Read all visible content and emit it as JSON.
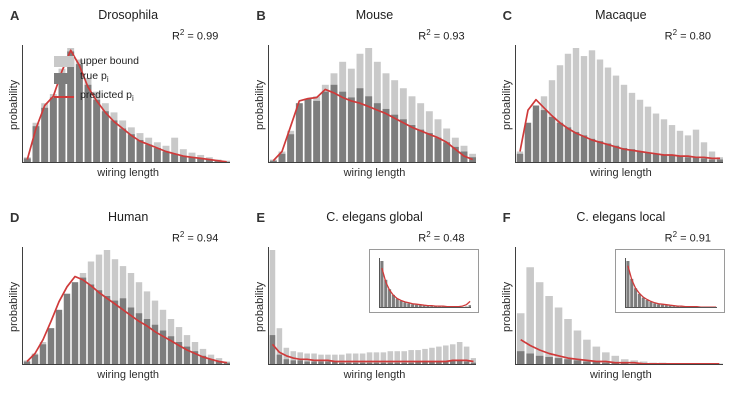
{
  "colors": {
    "upper_bound": "#c9c9c9",
    "true_pi": "#7d7d7d",
    "predicted_pi": "#cf3a3a",
    "axis": "#3f3f3f",
    "text": "#1e1e1e"
  },
  "legend": {
    "items": [
      {
        "label": "upper bound",
        "sub": ""
      },
      {
        "label": "true p",
        "sub": "i"
      },
      {
        "label": "predicted p",
        "sub": "i"
      }
    ]
  },
  "chart_data": [
    {
      "panel_label": "A",
      "type": "bar",
      "title": "Drosophila",
      "r2": {
        "base": "R",
        "sup": "2",
        "rest": " = 0.99"
      },
      "xlabel": "wiring length",
      "ylabel": "probability",
      "ylim": [
        0,
        1
      ],
      "legend_position": "upper-left-inside",
      "series": {
        "upper_bound": [
          0.05,
          0.35,
          0.52,
          0.6,
          0.82,
          1.0,
          0.9,
          0.74,
          0.62,
          0.52,
          0.44,
          0.37,
          0.31,
          0.26,
          0.22,
          0.18,
          0.15,
          0.22,
          0.12,
          0.09,
          0.07,
          0.05,
          0.03,
          0.02
        ],
        "true_pi": [
          0.04,
          0.32,
          0.48,
          0.57,
          0.78,
          0.97,
          0.86,
          0.68,
          0.55,
          0.45,
          0.37,
          0.3,
          0.25,
          0.2,
          0.16,
          0.13,
          0.1,
          0.08,
          0.06,
          0.05,
          0.04,
          0.03,
          0.02,
          0.01
        ],
        "predicted_pi": [
          0.03,
          0.3,
          0.5,
          0.58,
          0.8,
          0.98,
          0.85,
          0.66,
          0.54,
          0.44,
          0.36,
          0.3,
          0.24,
          0.19,
          0.16,
          0.13,
          0.1,
          0.08,
          0.06,
          0.05,
          0.04,
          0.03,
          0.02,
          0.01
        ]
      }
    },
    {
      "panel_label": "B",
      "type": "bar",
      "title": "Mouse",
      "r2": {
        "base": "R",
        "sup": "2",
        "rest": " = 0.93"
      },
      "xlabel": "wiring length",
      "ylabel": "probability",
      "ylim": [
        0,
        1
      ],
      "series": {
        "upper_bound": [
          0.03,
          0.1,
          0.28,
          0.48,
          0.55,
          0.58,
          0.68,
          0.78,
          0.88,
          0.82,
          0.95,
          1.0,
          0.88,
          0.78,
          0.72,
          0.65,
          0.58,
          0.52,
          0.45,
          0.38,
          0.3,
          0.22,
          0.15,
          0.08
        ],
        "true_pi": [
          0.02,
          0.08,
          0.25,
          0.52,
          0.56,
          0.54,
          0.62,
          0.68,
          0.62,
          0.57,
          0.65,
          0.58,
          0.52,
          0.47,
          0.42,
          0.38,
          0.33,
          0.29,
          0.26,
          0.22,
          0.18,
          0.14,
          0.1,
          0.05
        ],
        "predicted_pi": [
          0.02,
          0.1,
          0.32,
          0.54,
          0.56,
          0.57,
          0.64,
          0.61,
          0.57,
          0.54,
          0.52,
          0.49,
          0.46,
          0.43,
          0.39,
          0.35,
          0.31,
          0.28,
          0.25,
          0.22,
          0.18,
          0.12,
          0.06,
          0.03
        ]
      }
    },
    {
      "panel_label": "C",
      "type": "bar",
      "title": "Macaque",
      "r2": {
        "base": "R",
        "sup": "2",
        "rest": " = 0.80"
      },
      "xlabel": "wiring length",
      "ylabel": "probability",
      "ylim": [
        0,
        1
      ],
      "series": {
        "upper_bound": [
          0.1,
          0.3,
          0.45,
          0.58,
          0.72,
          0.85,
          0.95,
          1.0,
          0.93,
          0.98,
          0.9,
          0.83,
          0.76,
          0.68,
          0.61,
          0.55,
          0.49,
          0.43,
          0.38,
          0.33,
          0.28,
          0.24,
          0.29,
          0.18,
          0.1,
          0.05
        ],
        "true_pi": [
          0.08,
          0.35,
          0.5,
          0.46,
          0.4,
          0.35,
          0.31,
          0.27,
          0.24,
          0.21,
          0.19,
          0.17,
          0.15,
          0.13,
          0.12,
          0.1,
          0.09,
          0.08,
          0.07,
          0.07,
          0.06,
          0.05,
          0.05,
          0.04,
          0.03,
          0.03
        ],
        "predicted_pi": [
          0.1,
          0.46,
          0.55,
          0.48,
          0.41,
          0.35,
          0.3,
          0.26,
          0.23,
          0.2,
          0.18,
          0.16,
          0.14,
          0.12,
          0.11,
          0.1,
          0.09,
          0.08,
          0.07,
          0.07,
          0.06,
          0.06,
          0.05,
          0.05,
          0.04,
          0.04
        ]
      }
    },
    {
      "panel_label": "D",
      "type": "bar",
      "title": "Human",
      "r2": {
        "base": "R",
        "sup": "2",
        "rest": " = 0.94"
      },
      "xlabel": "wiring length",
      "ylabel": "probability",
      "ylim": [
        0,
        1
      ],
      "series": {
        "upper_bound": [
          0.04,
          0.1,
          0.2,
          0.32,
          0.45,
          0.58,
          0.7,
          0.8,
          0.9,
          0.96,
          1.0,
          0.92,
          0.86,
          0.8,
          0.72,
          0.64,
          0.56,
          0.48,
          0.4,
          0.33,
          0.26,
          0.2,
          0.14,
          0.09,
          0.06,
          0.03
        ],
        "true_pi": [
          0.03,
          0.09,
          0.18,
          0.32,
          0.48,
          0.62,
          0.72,
          0.76,
          0.7,
          0.65,
          0.6,
          0.56,
          0.58,
          0.5,
          0.45,
          0.4,
          0.35,
          0.3,
          0.25,
          0.2,
          0.16,
          0.12,
          0.08,
          0.05,
          0.03,
          0.02
        ],
        "predicted_pi": [
          0.03,
          0.1,
          0.22,
          0.38,
          0.55,
          0.68,
          0.77,
          0.74,
          0.69,
          0.63,
          0.58,
          0.53,
          0.48,
          0.43,
          0.38,
          0.34,
          0.29,
          0.25,
          0.21,
          0.17,
          0.13,
          0.1,
          0.07,
          0.05,
          0.03,
          0.02
        ]
      }
    },
    {
      "panel_label": "E",
      "type": "bar",
      "title": "C. elegans global",
      "r2": {
        "base": "R",
        "sup": "2",
        "rest": " = 0.48"
      },
      "xlabel": "wiring length",
      "ylabel": "probability",
      "ylim": [
        0,
        1
      ],
      "series": {
        "upper_bound": [
          1.0,
          0.32,
          0.15,
          0.12,
          0.11,
          0.1,
          0.1,
          0.09,
          0.09,
          0.09,
          0.09,
          0.1,
          0.1,
          0.1,
          0.11,
          0.11,
          0.11,
          0.12,
          0.12,
          0.12,
          0.13,
          0.13,
          0.14,
          0.15,
          0.16,
          0.17,
          0.18,
          0.2,
          0.16,
          0.06
        ],
        "true_pi": [
          0.26,
          0.09,
          0.05,
          0.04,
          0.04,
          0.03,
          0.03,
          0.03,
          0.03,
          0.03,
          0.02,
          0.02,
          0.02,
          0.02,
          0.02,
          0.02,
          0.02,
          0.02,
          0.02,
          0.02,
          0.02,
          0.03,
          0.03,
          0.03,
          0.03,
          0.03,
          0.04,
          0.04,
          0.03,
          0.02
        ],
        "predicted_pi": [
          0.18,
          0.11,
          0.08,
          0.06,
          0.05,
          0.05,
          0.04,
          0.04,
          0.04,
          0.03,
          0.03,
          0.03,
          0.03,
          0.03,
          0.03,
          0.03,
          0.03,
          0.03,
          0.03,
          0.03,
          0.03,
          0.03,
          0.03,
          0.03,
          0.03,
          0.03,
          0.04,
          0.04,
          0.04,
          0.03
        ]
      },
      "inset": {
        "true_pi": [
          1.0,
          0.6,
          0.4,
          0.28,
          0.2,
          0.15,
          0.12,
          0.1,
          0.08,
          0.07,
          0.06,
          0.05,
          0.05,
          0.04,
          0.04,
          0.03,
          0.03,
          0.03,
          0.03,
          0.02,
          0.02,
          0.02,
          0.03,
          0.06
        ],
        "predicted_pi": [
          0.85,
          0.55,
          0.38,
          0.27,
          0.2,
          0.16,
          0.13,
          0.11,
          0.09,
          0.08,
          0.07,
          0.06,
          0.05,
          0.05,
          0.04,
          0.04,
          0.04,
          0.03,
          0.03,
          0.03,
          0.03,
          0.04,
          0.07,
          0.14
        ]
      }
    },
    {
      "panel_label": "F",
      "type": "bar",
      "title": "C. elegans local",
      "r2": {
        "base": "R",
        "sup": "2",
        "rest": " = 0.91"
      },
      "xlabel": "wiring length",
      "ylabel": "probability",
      "ylim": [
        0,
        1
      ],
      "series": {
        "upper_bound": [
          0.45,
          0.85,
          0.72,
          0.6,
          0.5,
          0.4,
          0.3,
          0.22,
          0.16,
          0.11,
          0.08,
          0.05,
          0.04,
          0.03,
          0.02,
          0.02,
          0.01,
          0.01,
          0.01,
          0.01,
          0.01,
          0.01
        ],
        "true_pi": [
          0.12,
          0.1,
          0.08,
          0.07,
          0.06,
          0.05,
          0.04,
          0.03,
          0.03,
          0.02,
          0.02,
          0.02,
          0.01,
          0.01,
          0.01,
          0.01,
          0.01,
          0.01,
          0.01,
          0.01,
          0.01,
          0.01
        ],
        "predicted_pi": [
          0.22,
          0.17,
          0.13,
          0.1,
          0.08,
          0.06,
          0.05,
          0.04,
          0.03,
          0.03,
          0.02,
          0.02,
          0.02,
          0.01,
          0.01,
          0.01,
          0.01,
          0.01,
          0.01,
          0.01,
          0.01,
          0.01
        ]
      },
      "inset": {
        "true_pi": [
          1.0,
          0.62,
          0.42,
          0.3,
          0.22,
          0.17,
          0.13,
          0.1,
          0.08,
          0.07,
          0.06,
          0.05,
          0.04,
          0.04,
          0.03,
          0.03,
          0.03,
          0.02,
          0.02,
          0.02,
          0.02,
          0.02,
          0.02,
          0.02
        ],
        "predicted_pi": [
          0.9,
          0.6,
          0.42,
          0.31,
          0.23,
          0.18,
          0.14,
          0.11,
          0.09,
          0.08,
          0.07,
          0.06,
          0.05,
          0.04,
          0.04,
          0.03,
          0.03,
          0.03,
          0.03,
          0.02,
          0.02,
          0.02,
          0.02,
          0.02
        ]
      }
    }
  ]
}
